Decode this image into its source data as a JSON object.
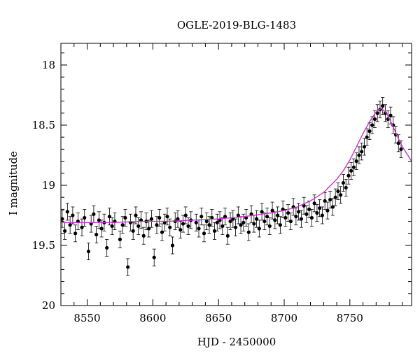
{
  "chart_data": {
    "type": "scatter",
    "title": "OGLE-2019-BLG-1483",
    "xlabel": "HJD - 2450000",
    "ylabel": "I magnitude",
    "xlim": [
      8530,
      8797
    ],
    "ylim": [
      20,
      17.82
    ],
    "y_inverted": true,
    "x_ticks": [
      8550,
      8600,
      8650,
      8700,
      8750
    ],
    "x_tick_labels": [
      "8550",
      "8600",
      "8650",
      "8700",
      "8750"
    ],
    "x_minor_step": 10,
    "y_ticks": [
      18,
      18.5,
      19,
      19.5,
      20
    ],
    "y_tick_labels": [
      "18",
      "18.5",
      "19",
      "19.5",
      "20"
    ],
    "y_minor_step": 0.1,
    "grid": false,
    "legend": "none",
    "colors": {
      "points": "#000000",
      "model": "#cc33cc"
    },
    "series": [
      {
        "kind": "points_with_errorbars",
        "x": [
          8531,
          8533,
          8535,
          8537,
          8539,
          8541,
          8543,
          8546,
          8548,
          8551,
          8553,
          8555,
          8557,
          8559,
          8561,
          8563,
          8565,
          8567,
          8569,
          8571,
          8575,
          8577,
          8579,
          8581,
          8583,
          8585,
          8587,
          8589,
          8591,
          8593,
          8595,
          8597,
          8599,
          8601,
          8603,
          8605,
          8607,
          8609,
          8611,
          8613,
          8615,
          8617,
          8619,
          8621,
          8623,
          8625,
          8627,
          8629,
          8633,
          8635,
          8637,
          8639,
          8641,
          8643,
          8645,
          8647,
          8649,
          8651,
          8653,
          8655,
          8657,
          8659,
          8661,
          8663,
          8665,
          8667,
          8669,
          8671,
          8673,
          8675,
          8677,
          8679,
          8681,
          8683,
          8685,
          8687,
          8689,
          8691,
          8693,
          8695,
          8697,
          8699,
          8701,
          8703,
          8705,
          8707,
          8709,
          8711,
          8713,
          8715,
          8717,
          8719,
          8721,
          8723,
          8725,
          8727,
          8729,
          8731,
          8733,
          8735,
          8737,
          8739,
          8741,
          8743,
          8745,
          8747,
          8749,
          8751,
          8753,
          8755,
          8757,
          8759,
          8761,
          8763,
          8765,
          8767,
          8769,
          8771,
          8773,
          8775,
          8777,
          8779,
          8781,
          8783,
          8785,
          8787,
          8789
        ],
        "y": [
          19.28,
          19.38,
          19.22,
          19.33,
          19.25,
          19.4,
          19.3,
          19.35,
          19.27,
          19.55,
          19.32,
          19.24,
          19.41,
          19.29,
          19.36,
          19.31,
          19.52,
          19.26,
          19.34,
          19.3,
          19.45,
          19.33,
          19.27,
          19.68,
          19.31,
          19.38,
          19.25,
          19.34,
          19.29,
          19.42,
          19.3,
          19.36,
          19.28,
          19.6,
          19.33,
          19.27,
          19.39,
          19.31,
          19.26,
          19.35,
          19.5,
          19.3,
          19.28,
          19.37,
          19.32,
          19.25,
          19.34,
          19.29,
          19.31,
          19.36,
          19.26,
          19.4,
          19.3,
          19.33,
          19.27,
          19.38,
          19.31,
          19.29,
          19.34,
          19.26,
          19.42,
          19.3,
          19.28,
          19.35,
          19.25,
          19.33,
          19.31,
          19.27,
          19.39,
          19.24,
          19.32,
          19.28,
          19.36,
          19.22,
          19.3,
          19.26,
          19.34,
          19.21,
          19.29,
          19.25,
          19.33,
          19.2,
          19.27,
          19.23,
          19.3,
          19.18,
          19.26,
          19.22,
          19.28,
          19.17,
          19.24,
          19.2,
          19.27,
          19.15,
          19.23,
          19.19,
          19.25,
          19.13,
          19.21,
          19.12,
          19.18,
          19.1,
          19.05,
          19.08,
          18.98,
          19.02,
          18.92,
          18.88,
          18.85,
          18.8,
          18.75,
          18.72,
          18.68,
          18.6,
          18.55,
          18.5,
          18.45,
          18.4,
          18.37,
          18.34,
          18.4,
          18.45,
          18.42,
          18.5,
          18.58,
          18.65,
          18.7
        ],
        "yerr": 0.07
      },
      {
        "kind": "model_line",
        "x": [
          8530,
          8550,
          8570,
          8590,
          8610,
          8630,
          8650,
          8670,
          8690,
          8700,
          8710,
          8720,
          8730,
          8740,
          8745,
          8750,
          8755,
          8760,
          8765,
          8770,
          8774,
          8778,
          8782,
          8786,
          8790,
          8797
        ],
        "y": [
          19.31,
          19.31,
          19.31,
          19.3,
          19.3,
          19.29,
          19.28,
          19.26,
          19.23,
          19.21,
          19.18,
          19.13,
          19.06,
          18.95,
          18.88,
          18.79,
          18.68,
          18.57,
          18.47,
          18.39,
          18.36,
          18.4,
          18.49,
          18.59,
          18.68,
          18.8
        ]
      }
    ]
  }
}
